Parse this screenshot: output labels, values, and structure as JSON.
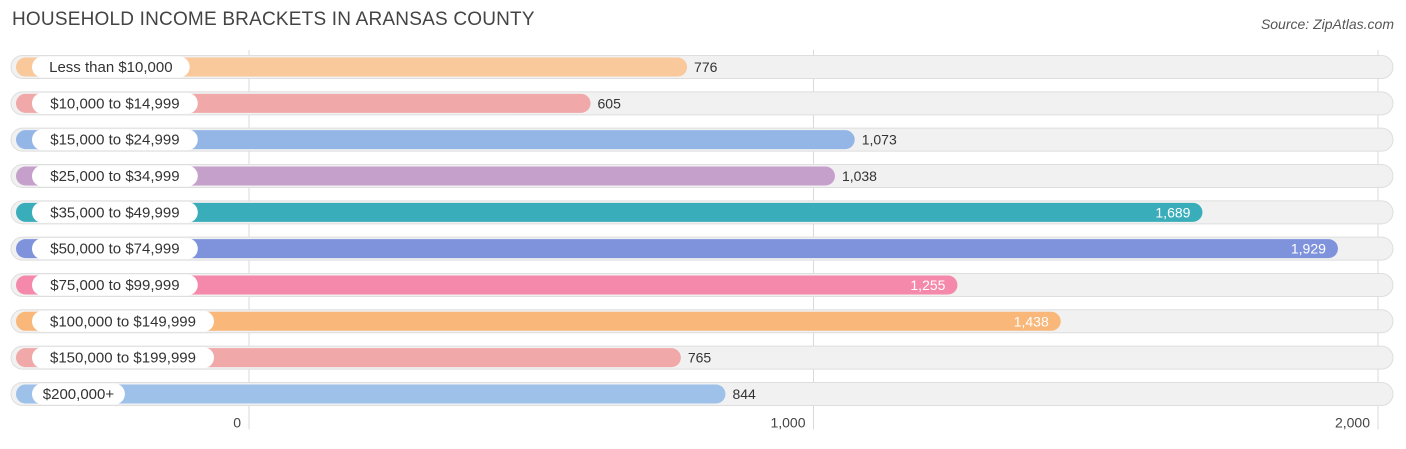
{
  "chart_data": {
    "type": "bar",
    "orientation": "horizontal",
    "title": "HOUSEHOLD INCOME BRACKETS IN ARANSAS COUNTY",
    "source": "Source: ZipAtlas.com",
    "categories": [
      "Less than $10,000",
      "$10,000 to $14,999",
      "$15,000 to $24,999",
      "$25,000 to $34,999",
      "$35,000 to $49,999",
      "$50,000 to $74,999",
      "$75,000 to $99,999",
      "$100,000 to $149,999",
      "$150,000 to $199,999",
      "$200,000+"
    ],
    "values": [
      776,
      605,
      1073,
      1038,
      1689,
      1929,
      1255,
      1438,
      765,
      844
    ],
    "value_labels": [
      "776",
      "605",
      "1,073",
      "1,038",
      "1,689",
      "1,929",
      "1,255",
      "1,438",
      "765",
      "844"
    ],
    "colors": [
      "#f9c89b",
      "#f0a8a8",
      "#93b6e6",
      "#c5a0cb",
      "#3aadbb",
      "#7f93dd",
      "#f589ab",
      "#f9b77a",
      "#f0a8a8",
      "#9ec1ea"
    ],
    "xlim": [
      0,
      2000
    ],
    "xticks": [
      0,
      1000,
      2000
    ],
    "xtick_labels": [
      "0",
      "1,000",
      "2,000"
    ],
    "grid": true,
    "legend": "none"
  }
}
